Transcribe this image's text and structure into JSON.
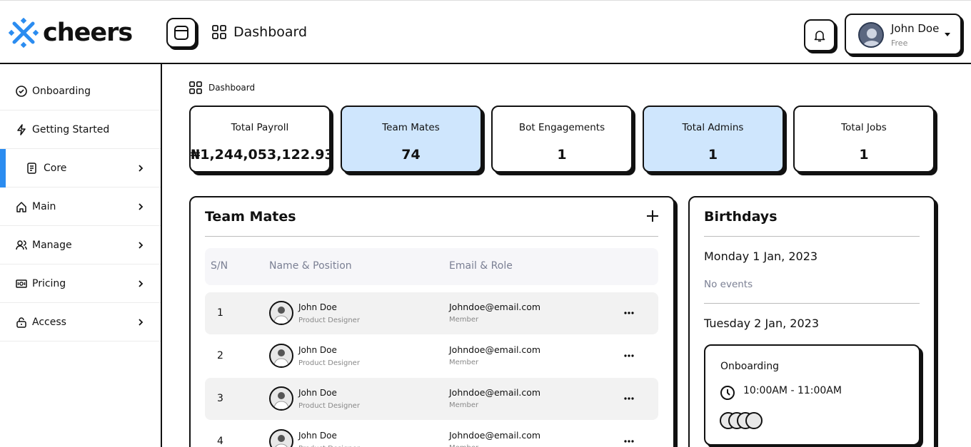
{
  "brand": "cheers",
  "header": {
    "title": "Dashboard",
    "user": {
      "name": "John Doe",
      "plan": "Free"
    }
  },
  "sidebar": [
    "Onboarding",
    "Getting Started",
    "Core",
    "Main",
    "Manage",
    "Pricing",
    "Access"
  ],
  "breadcrumb": "Dashboard",
  "stats": [
    {
      "label": "Total Payroll",
      "value": "₦1,244,053,122.93"
    },
    {
      "label": "Team Mates",
      "value": 74
    },
    {
      "label": "Bot Engagements",
      "value": 1
    },
    {
      "label": "Total Admins",
      "value": 1
    },
    {
      "label": "Total Jobs",
      "value": 1
    }
  ],
  "team": {
    "title": "Team Mates",
    "columns": [
      "S/N",
      "Name & Position",
      "Email & Role"
    ],
    "rows": [
      {
        "sn": 1,
        "name": "John Doe",
        "position": "Product Designer",
        "email": "Johndoe@email.com",
        "role": "Member"
      },
      {
        "sn": 2,
        "name": "John Doe",
        "position": "Product Designer",
        "email": "Johndoe@email.com",
        "role": "Member"
      },
      {
        "sn": 3,
        "name": "John Doe",
        "position": "Product Designer",
        "email": "Johndoe@email.com",
        "role": "Member"
      },
      {
        "sn": 4,
        "name": "John Doe",
        "position": "Product Designer",
        "email": "Johndoe@email.com",
        "role": "Member"
      }
    ]
  },
  "birthdays": {
    "title": "Birthdays",
    "days": [
      {
        "date": "Monday 1 Jan, 2023",
        "note": "No events"
      },
      {
        "date": "Tuesday 2 Jan, 2023"
      }
    ],
    "event": {
      "title": "Onboarding",
      "time": "10:00AM - 11:00AM"
    }
  }
}
